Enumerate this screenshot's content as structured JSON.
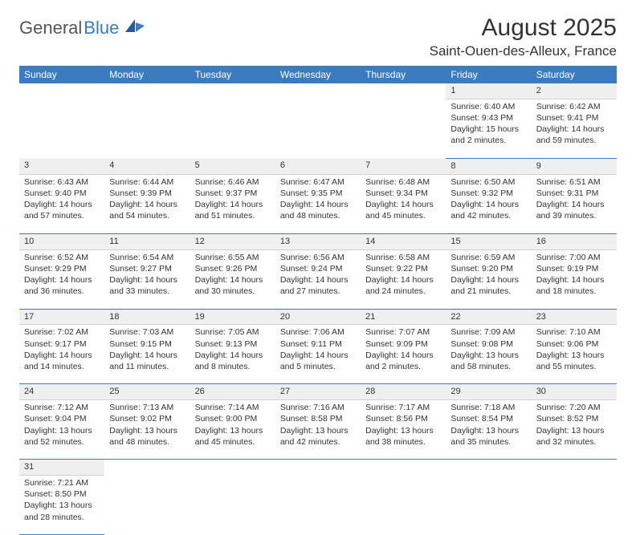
{
  "logo": {
    "general": "General",
    "blue": "Blue"
  },
  "title": "August 2025",
  "location": "Saint-Ouen-des-Alleux, France",
  "colors": {
    "header_bg": "#3b7bbf",
    "header_fg": "#ffffff",
    "daynum_bg": "#f0f0f0",
    "row_border": "#3b7bbf",
    "text": "#333333",
    "logo_gray": "#555555",
    "logo_blue": "#3b7bbf"
  },
  "weekdays": [
    "Sunday",
    "Monday",
    "Tuesday",
    "Wednesday",
    "Thursday",
    "Friday",
    "Saturday"
  ],
  "weeks": [
    [
      null,
      null,
      null,
      null,
      null,
      {
        "n": "1",
        "sr": "Sunrise: 6:40 AM",
        "ss": "Sunset: 9:43 PM",
        "dl1": "Daylight: 15 hours",
        "dl2": "and 2 minutes."
      },
      {
        "n": "2",
        "sr": "Sunrise: 6:42 AM",
        "ss": "Sunset: 9:41 PM",
        "dl1": "Daylight: 14 hours",
        "dl2": "and 59 minutes."
      }
    ],
    [
      {
        "n": "3",
        "sr": "Sunrise: 6:43 AM",
        "ss": "Sunset: 9:40 PM",
        "dl1": "Daylight: 14 hours",
        "dl2": "and 57 minutes."
      },
      {
        "n": "4",
        "sr": "Sunrise: 6:44 AM",
        "ss": "Sunset: 9:39 PM",
        "dl1": "Daylight: 14 hours",
        "dl2": "and 54 minutes."
      },
      {
        "n": "5",
        "sr": "Sunrise: 6:46 AM",
        "ss": "Sunset: 9:37 PM",
        "dl1": "Daylight: 14 hours",
        "dl2": "and 51 minutes."
      },
      {
        "n": "6",
        "sr": "Sunrise: 6:47 AM",
        "ss": "Sunset: 9:35 PM",
        "dl1": "Daylight: 14 hours",
        "dl2": "and 48 minutes."
      },
      {
        "n": "7",
        "sr": "Sunrise: 6:48 AM",
        "ss": "Sunset: 9:34 PM",
        "dl1": "Daylight: 14 hours",
        "dl2": "and 45 minutes."
      },
      {
        "n": "8",
        "sr": "Sunrise: 6:50 AM",
        "ss": "Sunset: 9:32 PM",
        "dl1": "Daylight: 14 hours",
        "dl2": "and 42 minutes."
      },
      {
        "n": "9",
        "sr": "Sunrise: 6:51 AM",
        "ss": "Sunset: 9:31 PM",
        "dl1": "Daylight: 14 hours",
        "dl2": "and 39 minutes."
      }
    ],
    [
      {
        "n": "10",
        "sr": "Sunrise: 6:52 AM",
        "ss": "Sunset: 9:29 PM",
        "dl1": "Daylight: 14 hours",
        "dl2": "and 36 minutes."
      },
      {
        "n": "11",
        "sr": "Sunrise: 6:54 AM",
        "ss": "Sunset: 9:27 PM",
        "dl1": "Daylight: 14 hours",
        "dl2": "and 33 minutes."
      },
      {
        "n": "12",
        "sr": "Sunrise: 6:55 AM",
        "ss": "Sunset: 9:26 PM",
        "dl1": "Daylight: 14 hours",
        "dl2": "and 30 minutes."
      },
      {
        "n": "13",
        "sr": "Sunrise: 6:56 AM",
        "ss": "Sunset: 9:24 PM",
        "dl1": "Daylight: 14 hours",
        "dl2": "and 27 minutes."
      },
      {
        "n": "14",
        "sr": "Sunrise: 6:58 AM",
        "ss": "Sunset: 9:22 PM",
        "dl1": "Daylight: 14 hours",
        "dl2": "and 24 minutes."
      },
      {
        "n": "15",
        "sr": "Sunrise: 6:59 AM",
        "ss": "Sunset: 9:20 PM",
        "dl1": "Daylight: 14 hours",
        "dl2": "and 21 minutes."
      },
      {
        "n": "16",
        "sr": "Sunrise: 7:00 AM",
        "ss": "Sunset: 9:19 PM",
        "dl1": "Daylight: 14 hours",
        "dl2": "and 18 minutes."
      }
    ],
    [
      {
        "n": "17",
        "sr": "Sunrise: 7:02 AM",
        "ss": "Sunset: 9:17 PM",
        "dl1": "Daylight: 14 hours",
        "dl2": "and 14 minutes."
      },
      {
        "n": "18",
        "sr": "Sunrise: 7:03 AM",
        "ss": "Sunset: 9:15 PM",
        "dl1": "Daylight: 14 hours",
        "dl2": "and 11 minutes."
      },
      {
        "n": "19",
        "sr": "Sunrise: 7:05 AM",
        "ss": "Sunset: 9:13 PM",
        "dl1": "Daylight: 14 hours",
        "dl2": "and 8 minutes."
      },
      {
        "n": "20",
        "sr": "Sunrise: 7:06 AM",
        "ss": "Sunset: 9:11 PM",
        "dl1": "Daylight: 14 hours",
        "dl2": "and 5 minutes."
      },
      {
        "n": "21",
        "sr": "Sunrise: 7:07 AM",
        "ss": "Sunset: 9:09 PM",
        "dl1": "Daylight: 14 hours",
        "dl2": "and 2 minutes."
      },
      {
        "n": "22",
        "sr": "Sunrise: 7:09 AM",
        "ss": "Sunset: 9:08 PM",
        "dl1": "Daylight: 13 hours",
        "dl2": "and 58 minutes."
      },
      {
        "n": "23",
        "sr": "Sunrise: 7:10 AM",
        "ss": "Sunset: 9:06 PM",
        "dl1": "Daylight: 13 hours",
        "dl2": "and 55 minutes."
      }
    ],
    [
      {
        "n": "24",
        "sr": "Sunrise: 7:12 AM",
        "ss": "Sunset: 9:04 PM",
        "dl1": "Daylight: 13 hours",
        "dl2": "and 52 minutes."
      },
      {
        "n": "25",
        "sr": "Sunrise: 7:13 AM",
        "ss": "Sunset: 9:02 PM",
        "dl1": "Daylight: 13 hours",
        "dl2": "and 48 minutes."
      },
      {
        "n": "26",
        "sr": "Sunrise: 7:14 AM",
        "ss": "Sunset: 9:00 PM",
        "dl1": "Daylight: 13 hours",
        "dl2": "and 45 minutes."
      },
      {
        "n": "27",
        "sr": "Sunrise: 7:16 AM",
        "ss": "Sunset: 8:58 PM",
        "dl1": "Daylight: 13 hours",
        "dl2": "and 42 minutes."
      },
      {
        "n": "28",
        "sr": "Sunrise: 7:17 AM",
        "ss": "Sunset: 8:56 PM",
        "dl1": "Daylight: 13 hours",
        "dl2": "and 38 minutes."
      },
      {
        "n": "29",
        "sr": "Sunrise: 7:18 AM",
        "ss": "Sunset: 8:54 PM",
        "dl1": "Daylight: 13 hours",
        "dl2": "and 35 minutes."
      },
      {
        "n": "30",
        "sr": "Sunrise: 7:20 AM",
        "ss": "Sunset: 8:52 PM",
        "dl1": "Daylight: 13 hours",
        "dl2": "and 32 minutes."
      }
    ],
    [
      {
        "n": "31",
        "sr": "Sunrise: 7:21 AM",
        "ss": "Sunset: 8:50 PM",
        "dl1": "Daylight: 13 hours",
        "dl2": "and 28 minutes."
      },
      null,
      null,
      null,
      null,
      null,
      null
    ]
  ]
}
